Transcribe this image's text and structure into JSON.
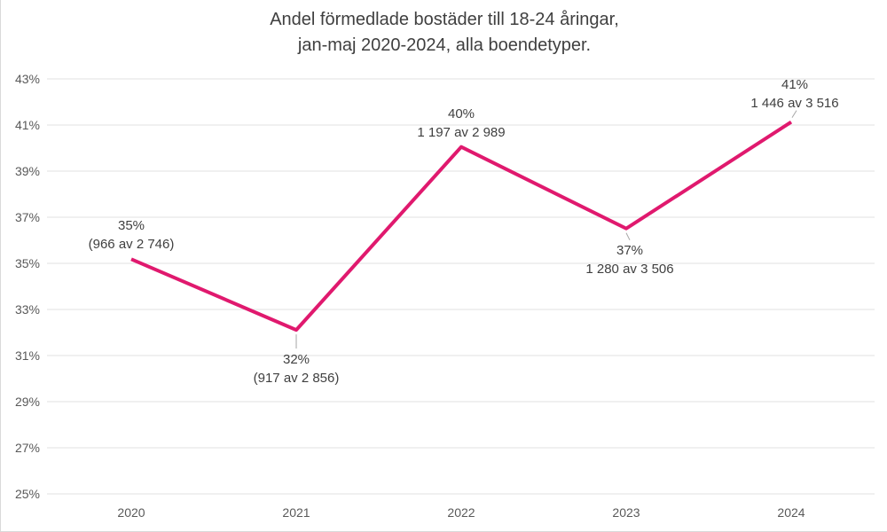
{
  "title": {
    "line1": "Andel förmedlade bostäder till 18-24 åringar,",
    "line2": "jan-maj 2020-2024, alla boendetyper."
  },
  "chart_data": {
    "type": "line",
    "title": "Andel förmedlade bostäder till 18-24 åringar, jan-maj 2020-2024, alla boendetyper.",
    "categories": [
      "2020",
      "2021",
      "2022",
      "2023",
      "2024"
    ],
    "series": [
      {
        "name": "andel-18-24",
        "values_pct": [
          35.18,
          32.11,
          40.05,
          36.51,
          41.13
        ]
      }
    ],
    "points": [
      {
        "year": "2020",
        "value_pct": 35.18,
        "label_pct": "35%",
        "label_detail": "(966 av 2 746)",
        "label_position": "above",
        "callout": false
      },
      {
        "year": "2021",
        "value_pct": 32.11,
        "label_pct": "32%",
        "label_detail": "(917 av 2 856)",
        "label_position": "below",
        "callout": true
      },
      {
        "year": "2022",
        "value_pct": 40.05,
        "label_pct": "40%",
        "label_detail": "1 197 av 2 989",
        "label_position": "above",
        "callout": false
      },
      {
        "year": "2023",
        "value_pct": 36.51,
        "label_pct": "37%",
        "label_detail": "1 280 av 3 506",
        "label_position": "below",
        "callout": true
      },
      {
        "year": "2024",
        "value_pct": 41.13,
        "label_pct": "41%",
        "label_detail": "1 446 av 3 516",
        "label_position": "above",
        "callout": true
      }
    ],
    "y_axis": {
      "tick_labels": [
        "43%",
        "41%",
        "39%",
        "37%",
        "35%",
        "33%",
        "31%",
        "29%",
        "27%",
        "25%"
      ],
      "tick_values": [
        43,
        41,
        39,
        37,
        35,
        33,
        31,
        29,
        27,
        25
      ],
      "min": 25,
      "max": 43
    },
    "xlabel": "",
    "ylabel": "",
    "grid": true,
    "legend": false,
    "colors": {
      "line": "#e0196e",
      "grid": "#e7e7e7",
      "frame": "#d9d9d9",
      "tick_text": "#595959",
      "label_text": "#3f3f3f",
      "callout": "#a6a6a6",
      "background": "#ffffff"
    }
  }
}
